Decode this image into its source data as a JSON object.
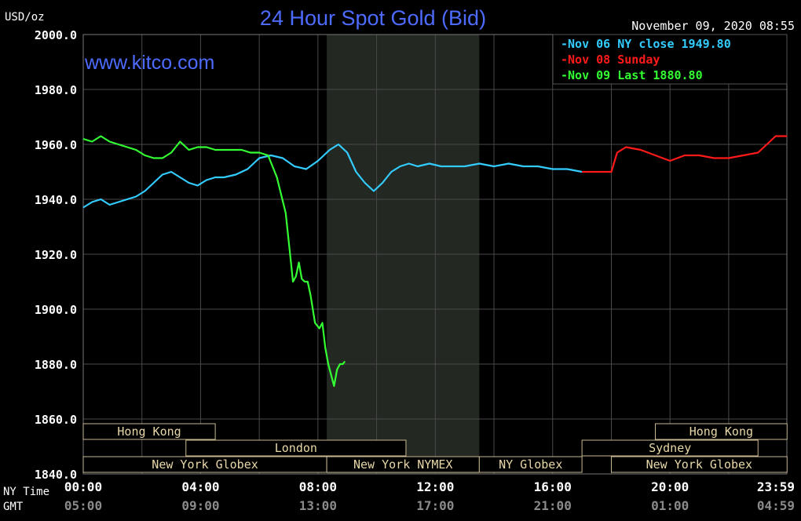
{
  "chart_data": {
    "type": "line",
    "title": "24 Hour Spot Gold (Bid)",
    "unit_label": "USD/oz",
    "watermark": "www.kitco.com",
    "timestamp": "November 09, 2020 08:55",
    "ylim": [
      1840,
      2000
    ],
    "y_ticks": [
      "2000.0",
      "1980.0",
      "1960.0",
      "1940.0",
      "1920.0",
      "1900.0",
      "1880.0",
      "1860.0",
      "1840.0"
    ],
    "x_axis": {
      "ny_label": "NY Time",
      "gmt_label": "GMT",
      "ny_ticks": [
        "00:00",
        "04:00",
        "08:00",
        "12:00",
        "16:00",
        "20:00",
        "23:59"
      ],
      "gmt_ticks": [
        "05:00",
        "09:00",
        "13:00",
        "17:00",
        "21:00",
        "01:00",
        "04:59"
      ]
    },
    "legend": [
      {
        "label": "Nov 06 NY close 1949.80",
        "color": "#33ccff"
      },
      {
        "label": "Nov 08 Sunday",
        "color": "#ff1a1a"
      },
      {
        "label": "Nov 09 Last 1880.80",
        "color": "#33ff33"
      }
    ],
    "legend_position": "top-right",
    "shaded_region_hours": [
      8.3,
      13.5
    ],
    "sessions": [
      {
        "label": "Hong Kong",
        "row": 0,
        "start": 0,
        "end": 4.5
      },
      {
        "label": "London",
        "row": 1,
        "start": 3.5,
        "end": 11.0
      },
      {
        "label": "New York Globex",
        "row": 2,
        "start": 0,
        "end": 8.3
      },
      {
        "label": "New York NYMEX",
        "row": 2,
        "start": 8.3,
        "end": 13.5
      },
      {
        "label": "NY Globex",
        "row": 2,
        "start": 13.5,
        "end": 17.0
      },
      {
        "label": "Hong Kong",
        "row": 0,
        "start": 19.5,
        "end": 23.99
      },
      {
        "label": "Sydney",
        "row": 1,
        "start": 17.0,
        "end": 23.0
      },
      {
        "label": "New York Globex",
        "row": 2,
        "start": 18.0,
        "end": 23.99
      }
    ],
    "series": [
      {
        "name": "Nov 06 NY close 1949.80",
        "color": "#33ccff",
        "x": [
          0,
          0.3,
          0.6,
          0.9,
          1.2,
          1.5,
          1.8,
          2.1,
          2.4,
          2.7,
          3.0,
          3.3,
          3.6,
          3.9,
          4.2,
          4.5,
          4.8,
          5.2,
          5.6,
          6.0,
          6.4,
          6.8,
          7.2,
          7.6,
          8.0,
          8.4,
          8.7,
          9.0,
          9.3,
          9.6,
          9.9,
          10.2,
          10.5,
          10.8,
          11.1,
          11.4,
          11.8,
          12.2,
          12.6,
          13.0,
          13.5,
          14.0,
          14.5,
          15.0,
          15.5,
          16.0,
          16.5,
          17.0
        ],
        "y": [
          1937,
          1939,
          1940,
          1938,
          1939,
          1940,
          1941,
          1943,
          1946,
          1949,
          1950,
          1948,
          1946,
          1945,
          1947,
          1948,
          1948,
          1949,
          1951,
          1955,
          1956,
          1955,
          1952,
          1951,
          1954,
          1958,
          1960,
          1957,
          1950,
          1946,
          1943,
          1946,
          1950,
          1952,
          1953,
          1952,
          1953,
          1952,
          1952,
          1952,
          1953,
          1952,
          1953,
          1952,
          1952,
          1951,
          1951,
          1950
        ]
      },
      {
        "name": "Nov 08 Sunday",
        "color": "#ff1a1a",
        "x": [
          17.0,
          17.5,
          18.0,
          18.2,
          18.5,
          19.0,
          19.5,
          20.0,
          20.5,
          21.0,
          21.5,
          22.0,
          22.5,
          23.0,
          23.3,
          23.6,
          23.99
        ],
        "y": [
          1950,
          1950,
          1950,
          1957,
          1959,
          1958,
          1956,
          1954,
          1956,
          1956,
          1955,
          1955,
          1956,
          1957,
          1960,
          1963,
          1963
        ]
      },
      {
        "name": "Nov 09 Last 1880.80",
        "color": "#33ff33",
        "x": [
          0,
          0.3,
          0.6,
          0.9,
          1.2,
          1.5,
          1.8,
          2.1,
          2.4,
          2.7,
          3.0,
          3.3,
          3.6,
          3.9,
          4.2,
          4.5,
          4.8,
          5.1,
          5.4,
          5.7,
          6.0,
          6.3,
          6.6,
          6.9,
          7.05,
          7.15,
          7.25,
          7.35,
          7.45,
          7.55,
          7.65,
          7.75,
          7.9,
          8.05,
          8.15,
          8.25,
          8.35,
          8.45,
          8.55,
          8.65,
          8.75,
          8.85,
          8.92
        ],
        "y": [
          1962,
          1961,
          1963,
          1961,
          1960,
          1959,
          1958,
          1956,
          1955,
          1955,
          1957,
          1961,
          1958,
          1959,
          1959,
          1958,
          1958,
          1958,
          1958,
          1957,
          1957,
          1956,
          1948,
          1935,
          1920,
          1910,
          1912,
          1917,
          1911,
          1910,
          1910,
          1905,
          1895,
          1893,
          1895,
          1886,
          1880,
          1876,
          1872,
          1878,
          1880,
          1880,
          1881
        ]
      }
    ]
  }
}
